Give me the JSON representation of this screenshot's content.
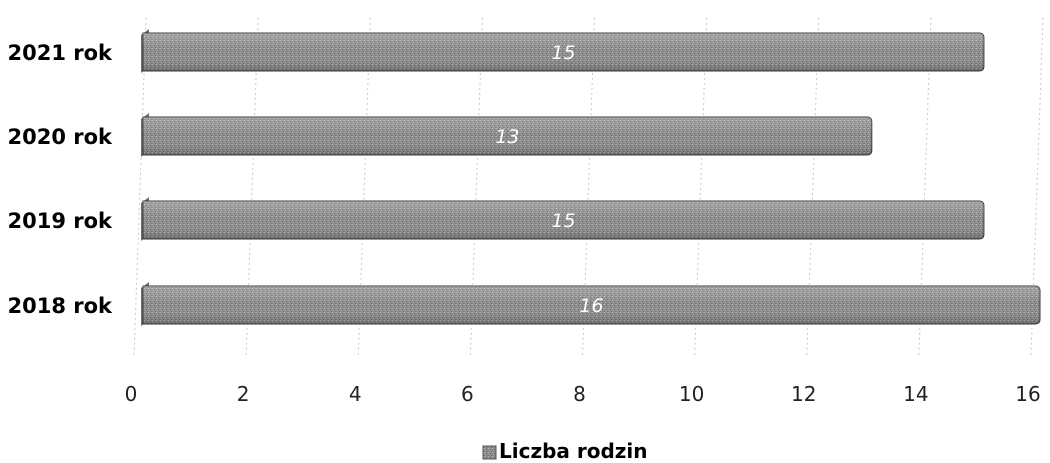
{
  "chart_data": {
    "type": "bar",
    "orientation": "horizontal",
    "categories": [
      "2021 rok",
      "2020 rok",
      "2019 rok",
      "2018 rok"
    ],
    "series": [
      {
        "name": "Liczba rodzin",
        "values": [
          15,
          13,
          15,
          16
        ]
      }
    ],
    "xlim": [
      0,
      16
    ],
    "xticks": [
      0,
      2,
      4,
      6,
      8,
      10,
      12,
      14,
      16
    ],
    "grid": true,
    "legend_position": "bottom",
    "bar_color": "#8a8a8a",
    "label_color": "#ffffff"
  }
}
